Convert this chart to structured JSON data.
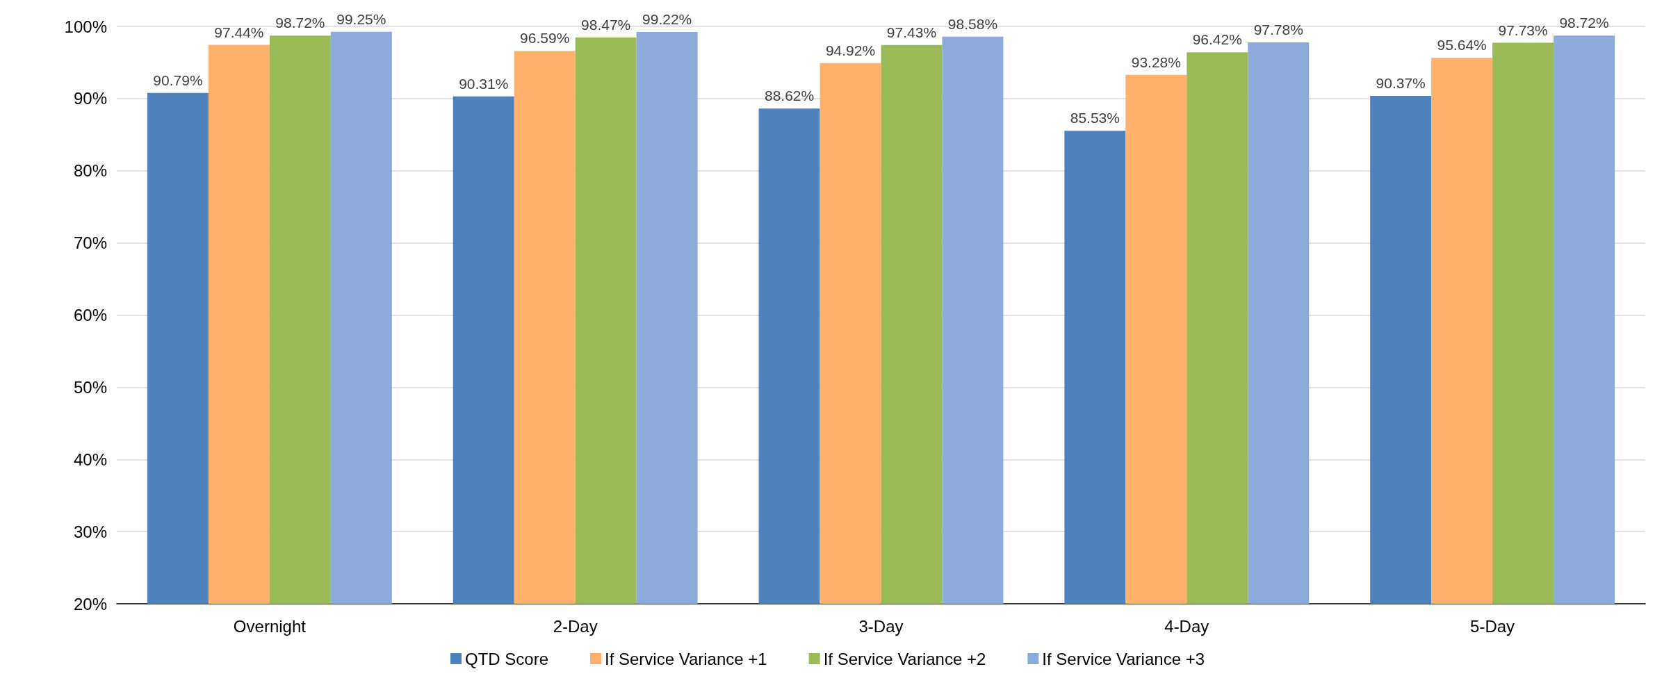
{
  "chart_data": {
    "type": "bar",
    "categories": [
      "Overnight",
      "2-Day",
      "3-Day",
      "4-Day",
      "5-Day"
    ],
    "series": [
      {
        "name": "QTD Score",
        "color": "#4f81bd",
        "values": [
          90.79,
          90.31,
          88.62,
          85.53,
          90.37
        ],
        "value_labels": [
          "90.79%",
          "90.31%",
          "88.62%",
          "85.53%",
          "90.37%"
        ]
      },
      {
        "name": "If Service Variance +1",
        "color": "#ffb06c",
        "values": [
          97.44,
          96.59,
          94.92,
          93.28,
          95.64
        ],
        "value_labels": [
          "97.44%",
          "96.59%",
          "94.92%",
          "93.28%",
          "95.64%"
        ]
      },
      {
        "name": "If Service Variance +2",
        "color": "#9bbb59",
        "values": [
          98.72,
          98.47,
          97.43,
          96.42,
          97.73
        ],
        "value_labels": [
          "98.72%",
          "98.47%",
          "97.43%",
          "96.42%",
          "97.73%"
        ]
      },
      {
        "name": "If Service Variance +3",
        "color": "#8eaadb",
        "values": [
          99.25,
          99.22,
          98.58,
          97.78,
          98.72
        ],
        "value_labels": [
          "99.25%",
          "99.22%",
          "98.58%",
          "97.78%",
          "98.72%"
        ]
      }
    ],
    "ylim": [
      20,
      100
    ],
    "yticks": [
      {
        "value": 20,
        "label": "20%"
      },
      {
        "value": 30,
        "label": "30%"
      },
      {
        "value": 40,
        "label": "40%"
      },
      {
        "value": 50,
        "label": "50%"
      },
      {
        "value": 60,
        "label": "60%"
      },
      {
        "value": 70,
        "label": "70%"
      },
      {
        "value": 80,
        "label": "80%"
      },
      {
        "value": 90,
        "label": "90%"
      },
      {
        "value": 100,
        "label": "100%"
      }
    ],
    "grid": "y",
    "legend": "bottom"
  }
}
